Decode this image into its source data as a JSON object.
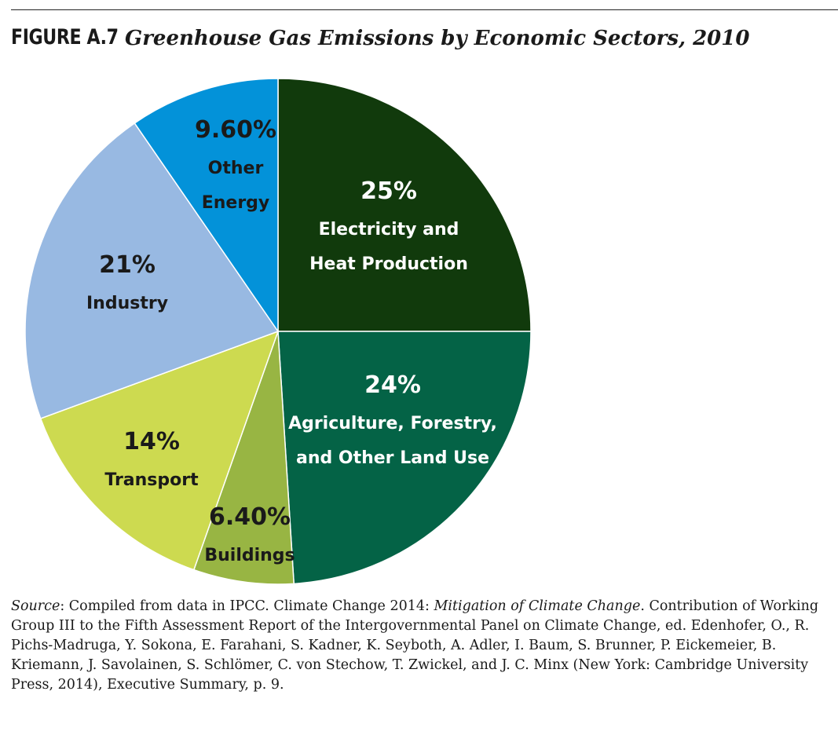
{
  "figure": {
    "label": "FIGURE A.7",
    "title": "Greenhouse Gas Emissions by Economic Sectors, 2010"
  },
  "chart_data": {
    "type": "pie",
    "title": "Greenhouse Gas Emissions by Economic Sectors, 2010",
    "slices": [
      {
        "value_label": "25%",
        "value": 25,
        "lines": [
          "Electricity and",
          "Heat Production"
        ],
        "color": "#113a0c",
        "text_color": "#ffffff"
      },
      {
        "value_label": "24%",
        "value": 24,
        "lines": [
          "Agriculture, Forestry,",
          "and Other Land Use"
        ],
        "color": "#046346",
        "text_color": "#ffffff"
      },
      {
        "value_label": "6.40%",
        "value": 6.4,
        "lines": [
          "Buildings"
        ],
        "color": "#98b543",
        "text_color": "#1a1a1a"
      },
      {
        "value_label": "14%",
        "value": 14,
        "lines": [
          "Transport"
        ],
        "color": "#cdda50",
        "text_color": "#1a1a1a"
      },
      {
        "value_label": "21%",
        "value": 21,
        "lines": [
          "Industry"
        ],
        "color": "#98b9e2",
        "text_color": "#1a1a1a"
      },
      {
        "value_label": "9.60%",
        "value": 9.6,
        "lines": [
          "Other",
          "Energy"
        ],
        "color": "#0392d9",
        "text_color": "#1a1a1a"
      }
    ]
  },
  "source": {
    "prefix": "Source",
    "text1": ": Compiled from data in IPCC. Climate Change 2014: ",
    "italic": "Mitigation of Climate Change",
    "text2": ". Contribution of Working Group III to the Fifth Assessment Report of the Intergovernmental Panel on Climate Change, ed. Edenhofer, O., R. Pichs-Madruga, Y. Sokona, E. Farahani, S. Kadner, K. Seyboth, A. Adler, I. Baum, S. Brunner, P. Eickemeier, B. Kriemann, J. Savolainen, S. Schlömer, C. von Stechow, T. Zwickel, and J. C. Minx (New York: Cambridge University Press, 2014), Executive Summary, p. 9."
  }
}
